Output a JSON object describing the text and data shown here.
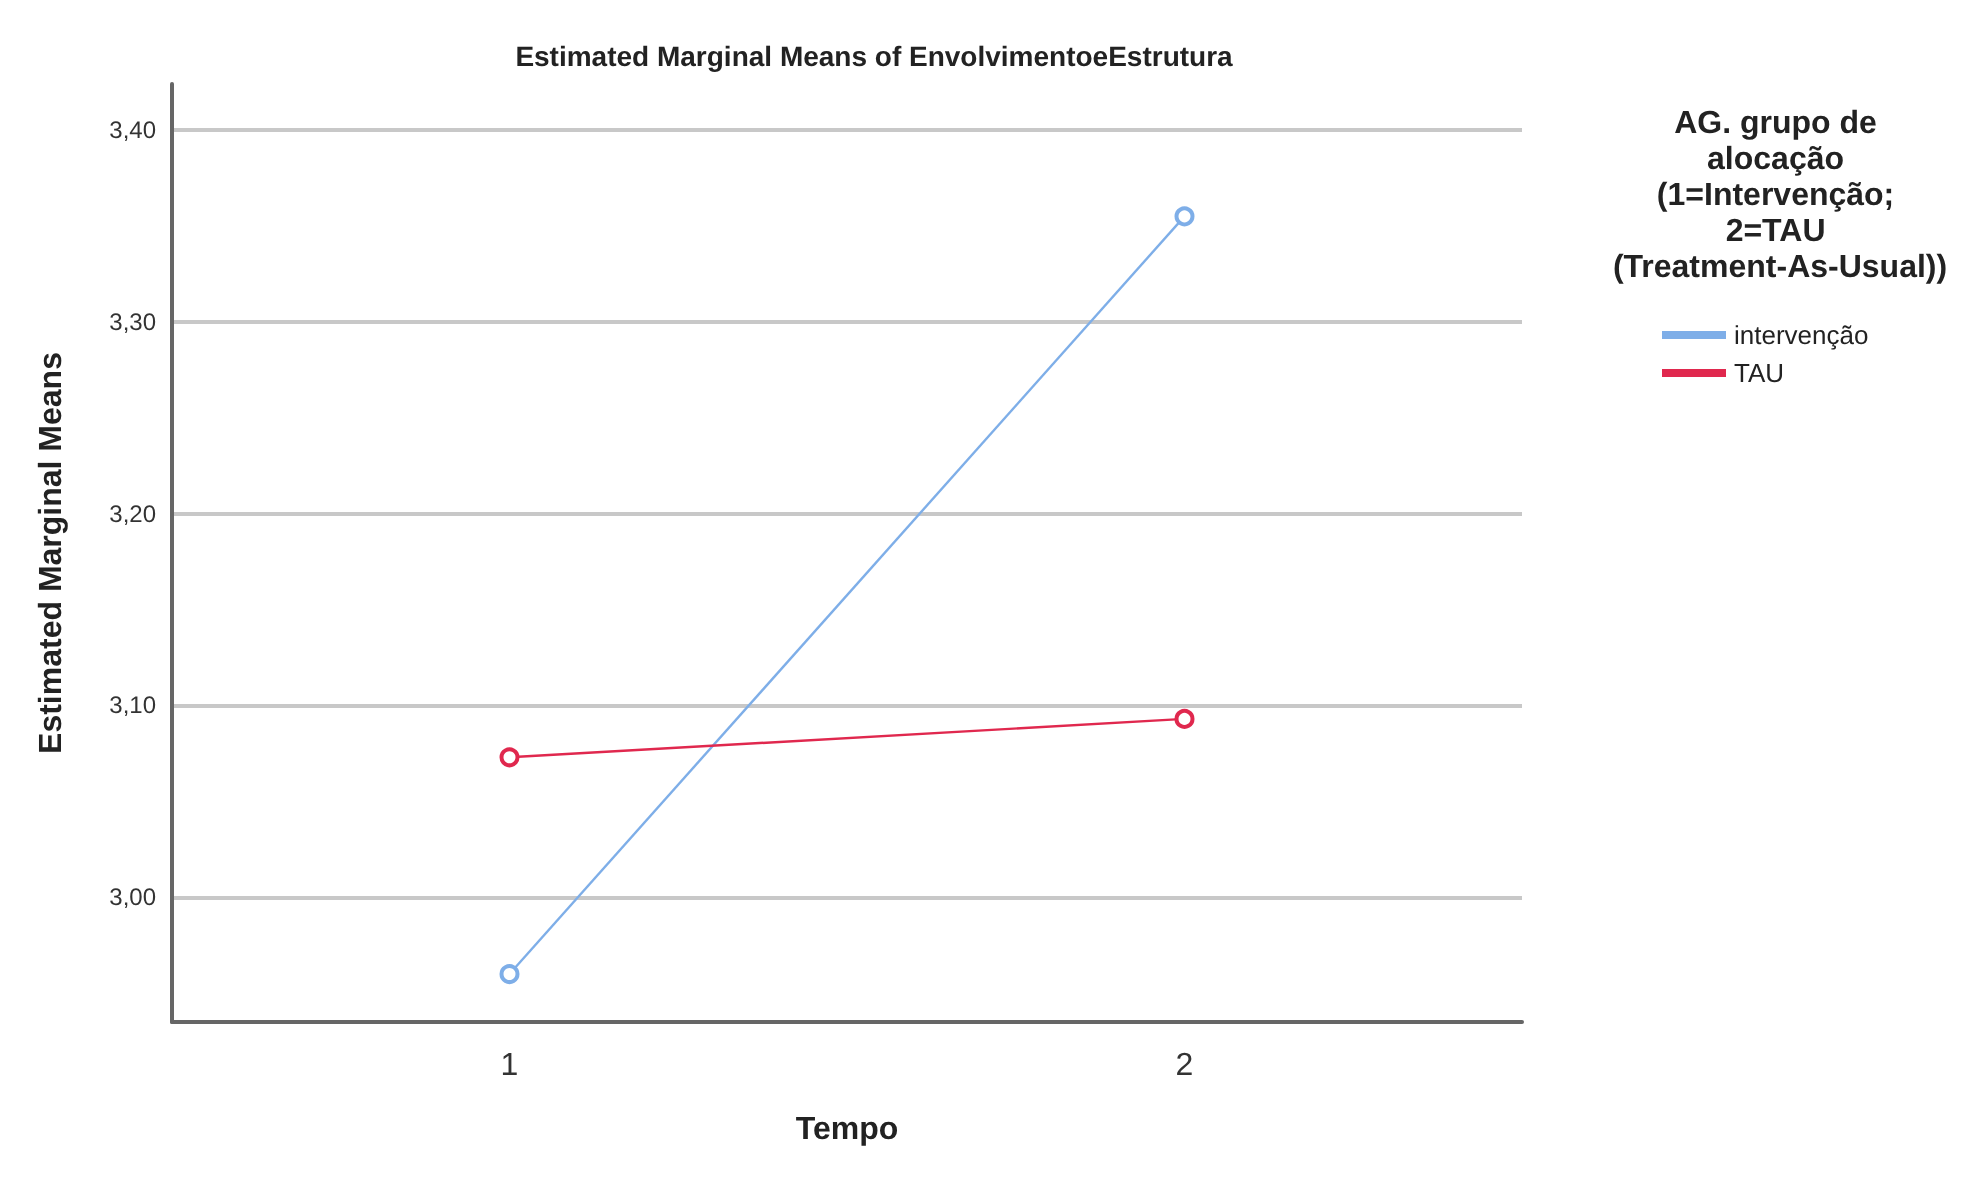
{
  "chart_data": {
    "type": "line",
    "title": "Estimated Marginal Means of EnvolvimentoeEstrutura",
    "xlabel": "Tempo",
    "ylabel": "Estimated Marginal Means",
    "legend_title": "AG. grupo de alocação (1=Intervenção; 2=TAU (Treatment-As-Usual))",
    "categories": [
      "1",
      "2"
    ],
    "series": [
      {
        "name": "intervenção",
        "color": "#7eaee8",
        "values": [
          2.96,
          3.355
        ]
      },
      {
        "name": "TAU",
        "color": "#e0284e",
        "values": [
          3.073,
          3.093
        ]
      }
    ],
    "ylim": [
      2.935,
      3.424
    ],
    "yticks": [
      {
        "value": 3.0,
        "label": "3,00"
      },
      {
        "value": 3.1,
        "label": "3,10"
      },
      {
        "value": 3.2,
        "label": "3,20"
      },
      {
        "value": 3.3,
        "label": "3,30"
      },
      {
        "value": 3.4,
        "label": "3,40"
      }
    ],
    "grid": "y",
    "legend": "top right",
    "marker": "circle",
    "line_style": "solid"
  }
}
